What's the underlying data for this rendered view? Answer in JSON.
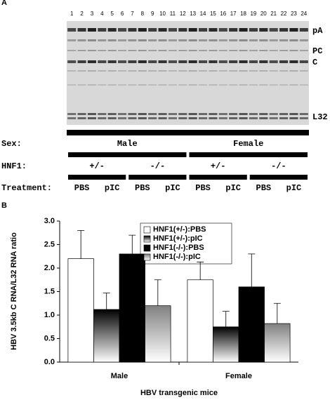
{
  "panel_a": {
    "label": "A",
    "lane_numbers": [
      1,
      2,
      3,
      4,
      5,
      6,
      7,
      8,
      9,
      10,
      11,
      12,
      13,
      14,
      15,
      16,
      17,
      18,
      19,
      20,
      21,
      22,
      23,
      24
    ],
    "band_labels": [
      "pA",
      "PC",
      "C",
      "L32"
    ],
    "sex": {
      "label": "Sex:",
      "groups": [
        "Male",
        "Female"
      ]
    },
    "hnf1": {
      "label": "HNF1:",
      "groups": [
        "+/-",
        "-/-",
        "+/-",
        "-/-"
      ]
    },
    "treatment": {
      "label": "Treatment:",
      "groups": [
        "PBS",
        "pIC",
        "PBS",
        "pIC",
        "PBS",
        "pIC",
        "PBS",
        "pIC"
      ]
    }
  },
  "panel_b": {
    "label": "B"
  },
  "chart_data": {
    "type": "bar",
    "y_label": "HBV 3.5kb C RNA/L32 RNA ratio",
    "x_label": "HBV transgenic mice",
    "categories": [
      "Male",
      "Female"
    ],
    "series": [
      {
        "name": "HNF1(+/-):PBS",
        "color": "#ffffff",
        "values": [
          2.2,
          1.75
        ],
        "errors": [
          0.6,
          0.38
        ]
      },
      {
        "name": "HNF1(+/-):pIC",
        "color": "#000000",
        "gradient_to": "#ffffff",
        "values": [
          1.12,
          0.75
        ],
        "errors": [
          0.35,
          0.33
        ]
      },
      {
        "name": "HNF1(-/-):PBS",
        "color": "#000000",
        "values": [
          2.3,
          1.6
        ],
        "errors": [
          0.4,
          0.7
        ]
      },
      {
        "name": "HNF1(-/-):pIC",
        "color": "#808080",
        "gradient_to": "#ffffff",
        "values": [
          1.2,
          0.82
        ],
        "errors": [
          0.55,
          0.43
        ]
      }
    ],
    "ylim": [
      0,
      3
    ],
    "yticks": [
      {
        "value": 0,
        "label": "0.0"
      },
      0.5,
      {
        "value": 1,
        "label": "1.0"
      },
      1.5,
      {
        "value": 2,
        "label": "2.0"
      },
      2.5,
      {
        "value": 3,
        "label": "3.0"
      }
    ]
  }
}
